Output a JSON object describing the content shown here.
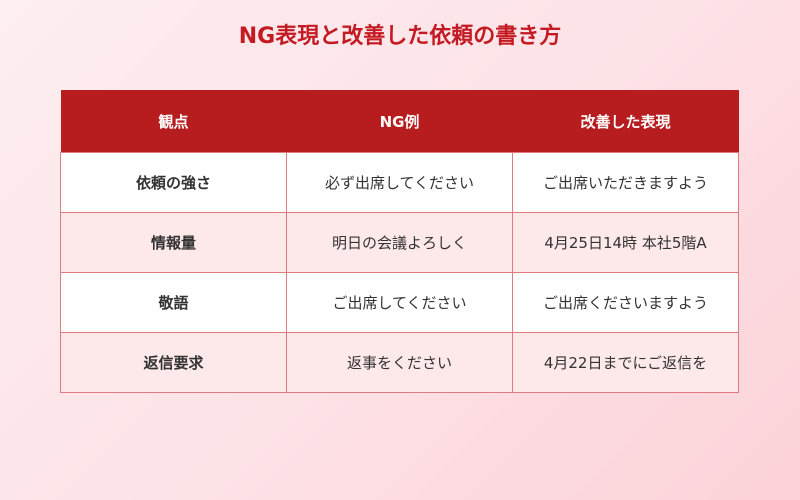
{
  "title": "NG表現と改善した依頼の書き方",
  "colors": {
    "header_bg": "#b71c1e",
    "title": "#c41a22",
    "border": "#e07a80",
    "alt_row": "#fde8ea"
  },
  "table": {
    "headers": [
      "観点",
      "NG例",
      "改善した表現"
    ],
    "rows": [
      [
        "依頼の強さ",
        "必ず出席してください",
        "ご出席いただきますよう"
      ],
      [
        "情報量",
        "明日の会議よろしく",
        "4月25日14時 本社5階A"
      ],
      [
        "敬語",
        "ご出席してください",
        "ご出席くださいますよう"
      ],
      [
        "返信要求",
        "返事をください",
        "4月22日までにご返信を"
      ]
    ]
  }
}
